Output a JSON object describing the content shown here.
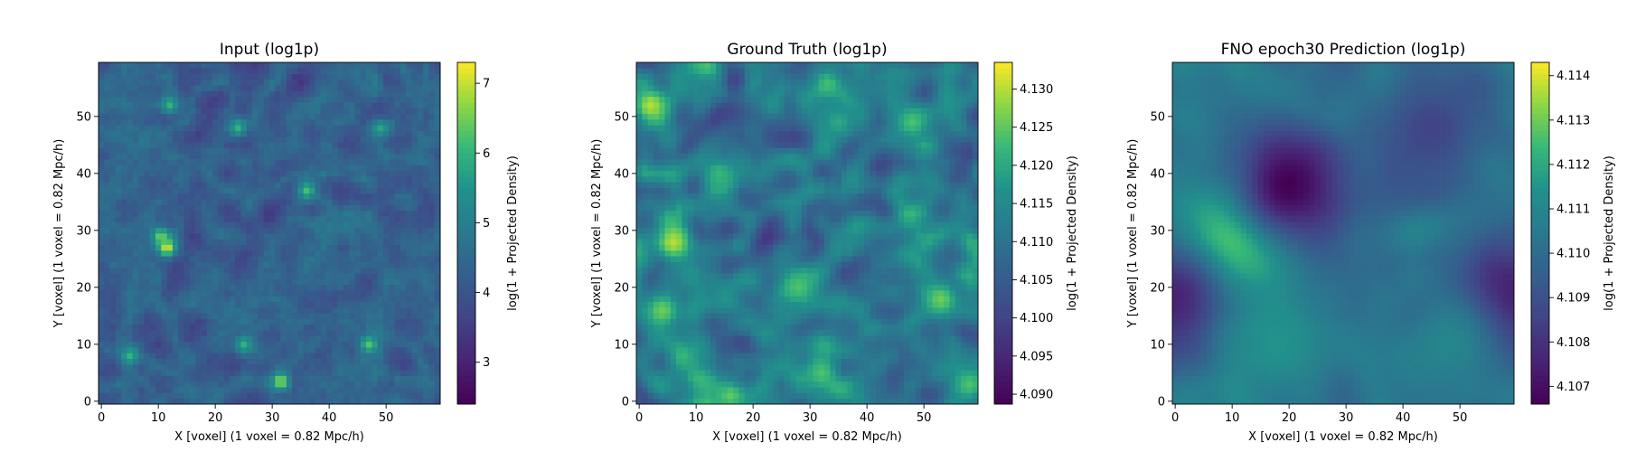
{
  "chart_data": [
    {
      "type": "heatmap",
      "title": "Input (log1p)",
      "xlabel": "X [voxel] (1 voxel = 0.82 Mpc/h)",
      "ylabel": "Y [voxel] (1 voxel = 0.82 Mpc/h)",
      "xlim": [
        -0.5,
        59.5
      ],
      "ylim": [
        -0.5,
        59.5
      ],
      "xticks": [
        "0",
        "10",
        "20",
        "30",
        "40",
        "50"
      ],
      "yticks": [
        "0",
        "10",
        "20",
        "30",
        "40",
        "50"
      ],
      "grid_size": 60,
      "colormap": "viridis",
      "texture": "noisy-filaments",
      "seed": 17,
      "colorbar": {
        "label": "log(1 + Projected Density)",
        "range": [
          2.4,
          7.3
        ],
        "ticks": [
          "3",
          "4",
          "5",
          "6",
          "7"
        ],
        "tick_values": [
          3,
          4,
          5,
          6,
          7
        ]
      },
      "features": [
        {
          "x": 11.5,
          "y": 27,
          "value": 7.2
        },
        {
          "x": 10.5,
          "y": 29,
          "value": 6.5
        },
        {
          "x": 31.5,
          "y": 3.5,
          "value": 6.8
        },
        {
          "x": 36,
          "y": 37,
          "value": 6.2
        },
        {
          "x": 24,
          "y": 48,
          "value": 6.0
        },
        {
          "x": 12,
          "y": 52,
          "value": 6.0
        },
        {
          "x": 47,
          "y": 10,
          "value": 6.3
        },
        {
          "x": 25,
          "y": 10,
          "value": 6.0
        },
        {
          "x": 49,
          "y": 48,
          "value": 5.8
        },
        {
          "x": 5,
          "y": 8,
          "value": 6.0
        }
      ]
    },
    {
      "type": "heatmap",
      "title": "Ground Truth (log1p)",
      "xlabel": "X [voxel] (1 voxel = 0.82 Mpc/h)",
      "ylabel": "Y [voxel] (1 voxel = 0.82 Mpc/h)",
      "xlim": [
        -0.5,
        59.5
      ],
      "ylim": [
        -0.5,
        59.5
      ],
      "xticks": [
        "0",
        "10",
        "20",
        "30",
        "40",
        "50"
      ],
      "yticks": [
        "0",
        "10",
        "20",
        "30",
        "40",
        "50"
      ],
      "grid_size": 60,
      "colormap": "viridis",
      "texture": "blobby",
      "seed": 42,
      "colorbar": {
        "label": "log(1 + Projected Density)",
        "range": [
          4.0887,
          4.1335
        ],
        "ticks": [
          "4.090",
          "4.095",
          "4.100",
          "4.105",
          "4.110",
          "4.115",
          "4.120",
          "4.125",
          "4.130"
        ],
        "tick_values": [
          4.09,
          4.095,
          4.1,
          4.105,
          4.11,
          4.115,
          4.12,
          4.125,
          4.13
        ]
      },
      "features": [
        {
          "x": 2,
          "y": 52,
          "value": 4.13
        },
        {
          "x": 6,
          "y": 28,
          "value": 4.13
        },
        {
          "x": 4,
          "y": 16,
          "value": 4.126
        },
        {
          "x": 16,
          "y": 1,
          "value": 4.125
        },
        {
          "x": 28,
          "y": 20,
          "value": 4.124
        },
        {
          "x": 32,
          "y": 5,
          "value": 4.124
        },
        {
          "x": 48,
          "y": 49,
          "value": 4.124
        },
        {
          "x": 53,
          "y": 18,
          "value": 4.126
        },
        {
          "x": 58,
          "y": 3,
          "value": 4.124
        },
        {
          "x": 14,
          "y": 40,
          "value": 4.122
        },
        {
          "x": 35,
          "y": 49,
          "value": 4.12
        }
      ]
    },
    {
      "type": "heatmap",
      "title": "FNO epoch30 Prediction (log1p)",
      "xlabel": "X [voxel] (1 voxel = 0.82 Mpc/h)",
      "ylabel": "Y [voxel] (1 voxel = 0.82 Mpc/h)",
      "xlim": [
        -0.5,
        59.5
      ],
      "ylim": [
        -0.5,
        59.5
      ],
      "xticks": [
        "0",
        "10",
        "20",
        "30",
        "40",
        "50"
      ],
      "yticks": [
        "0",
        "10",
        "20",
        "30",
        "40",
        "50"
      ],
      "grid_size": 60,
      "colormap": "viridis",
      "texture": "smooth",
      "seed": 7,
      "colorbar": {
        "label": "log(1 + Projected Density)",
        "range": [
          4.1066,
          4.1143
        ],
        "ticks": [
          "4.107",
          "4.108",
          "4.109",
          "4.110",
          "4.111",
          "4.112",
          "4.113",
          "4.114"
        ],
        "tick_values": [
          4.107,
          4.108,
          4.109,
          4.11,
          4.111,
          4.112,
          4.113,
          4.114
        ]
      },
      "features": [
        {
          "x": 10,
          "y": 28,
          "value": 4.1143
        },
        {
          "x": 20,
          "y": 38,
          "value": 4.1066
        },
        {
          "x": 58,
          "y": 18,
          "value": 4.107
        },
        {
          "x": 0,
          "y": 18,
          "value": 4.1075
        },
        {
          "x": 18,
          "y": 10,
          "value": 4.1115
        },
        {
          "x": 48,
          "y": 10,
          "value": 4.111
        },
        {
          "x": 45,
          "y": 48,
          "value": 4.1085
        }
      ]
    }
  ]
}
